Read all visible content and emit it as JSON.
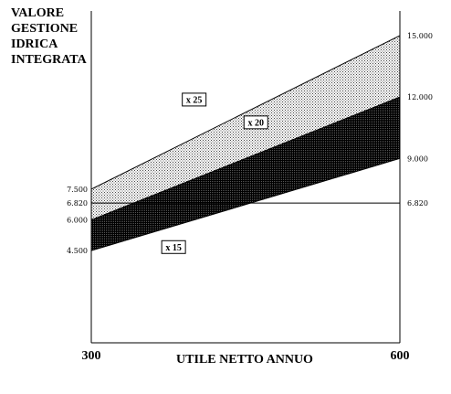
{
  "chart_data": {
    "type": "area",
    "ylabel_lines": [
      "VALORE",
      "GESTIONE",
      "IDRICA",
      "INTEGRATA"
    ],
    "xlabel": "UTILE NETTO ANNUO",
    "xlim": [
      300,
      600
    ],
    "x_tick_labels": [
      "300",
      "600"
    ],
    "y_left_ticks": [
      {
        "value": 7500,
        "label": "7.500"
      },
      {
        "value": 6820,
        "label": "6.820"
      },
      {
        "value": 6000,
        "label": "6.000"
      },
      {
        "value": 4500,
        "label": "4.500"
      }
    ],
    "y_right_ticks": [
      {
        "value": 15000,
        "label": "15.000"
      },
      {
        "value": 12000,
        "label": "12.000"
      },
      {
        "value": 9000,
        "label": "9.000"
      },
      {
        "value": 6820,
        "label": "6.820"
      }
    ],
    "series": [
      {
        "name": "x 25",
        "x": [
          300,
          600
        ],
        "y": [
          7500,
          15000
        ]
      },
      {
        "name": "x 20",
        "x": [
          300,
          600
        ],
        "y": [
          6000,
          12000
        ]
      },
      {
        "name": "x 15",
        "x": [
          300,
          600
        ],
        "y": [
          4500,
          9000
        ]
      }
    ],
    "reference_line": {
      "y": 6820
    },
    "colors": {
      "band_upper": "#d9d9d9",
      "band_lower": "#000000",
      "lines": "#000000"
    }
  }
}
